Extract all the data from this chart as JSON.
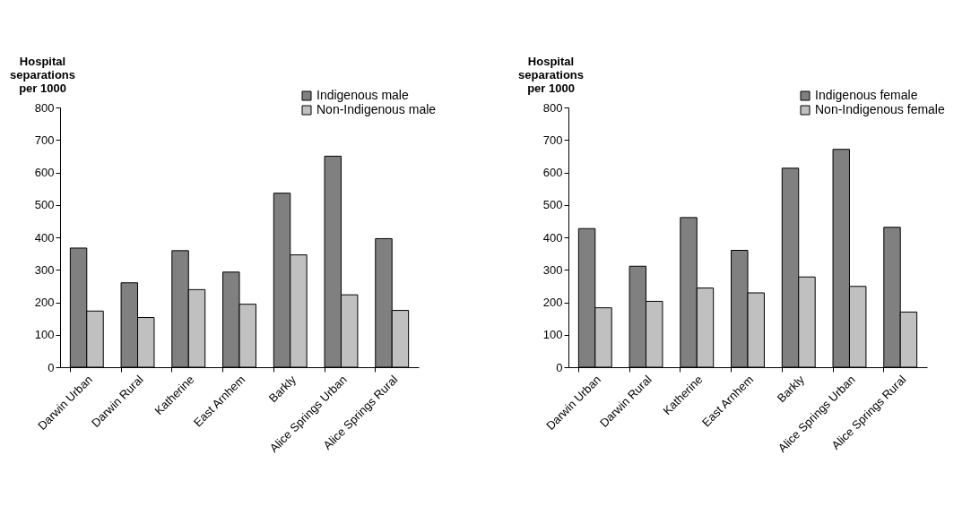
{
  "chart_data": [
    {
      "type": "bar",
      "ylabel": "Hospital separations per 1000",
      "categories": [
        "Darwin Urban",
        "Darwin Rural",
        "Katherine",
        "East Arnhem",
        "Barkly",
        "Alice Springs Urban",
        "Alice Springs Rural"
      ],
      "series": [
        {
          "name": "Indigenous male",
          "color": "#808080",
          "values": [
            367,
            260,
            359,
            293,
            536,
            650,
            396
          ]
        },
        {
          "name": "Non-Indigenous male",
          "color": "#c0c0c0",
          "values": [
            173,
            153,
            239,
            194,
            346,
            223,
            175
          ]
        }
      ],
      "ylim": [
        0,
        800
      ],
      "yticks": [
        0,
        100,
        200,
        300,
        400,
        500,
        600,
        700,
        800
      ],
      "grid": false,
      "legend": "top right"
    },
    {
      "type": "bar",
      "ylabel": "Hospital separations per 1000",
      "categories": [
        "Darwin Urban",
        "Darwin Rural",
        "Katherine",
        "East Arnhem",
        "Barkly",
        "Alice Springs Urban",
        "Alice Springs Rural"
      ],
      "series": [
        {
          "name": "Indigenous female",
          "color": "#808080",
          "values": [
            427,
            311,
            461,
            360,
            613,
            671,
            431
          ]
        },
        {
          "name": "Non-Indigenous female",
          "color": "#c0c0c0",
          "values": [
            183,
            203,
            244,
            229,
            278,
            249,
            170
          ]
        }
      ],
      "ylim": [
        0,
        800
      ],
      "yticks": [
        0,
        100,
        200,
        300,
        400,
        500,
        600,
        700,
        800
      ],
      "grid": false,
      "legend": "top right"
    }
  ]
}
